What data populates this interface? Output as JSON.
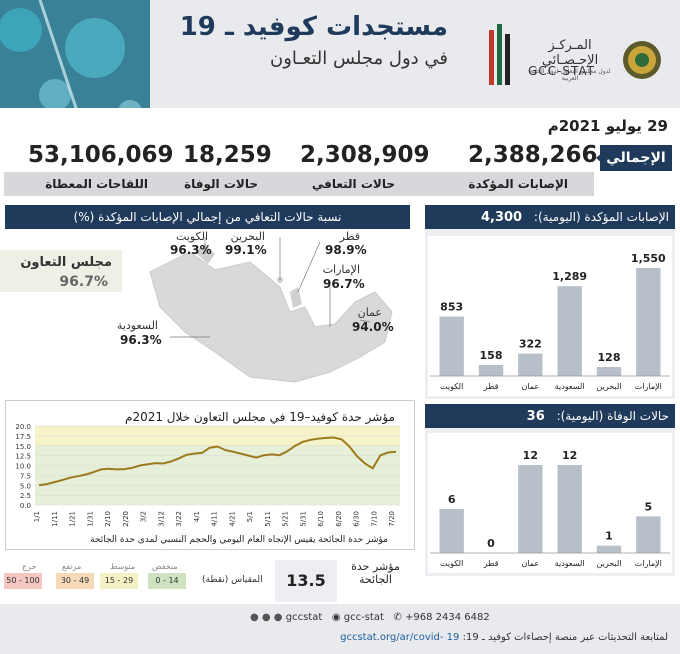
{
  "header": {
    "title": "مستجدات كوفيد ـ 19",
    "subtitle": "في دول مجلس التعـاون",
    "logo_ar": "المـركـز الإحـصـائي",
    "logo_ar_sub": "لدول مجلس التعاون لدول الخليج العربية",
    "logo_en": "GCC-STAT"
  },
  "date": "29 يوليو 2021م",
  "totals": {
    "label": "الإجمالي",
    "confirmed": {
      "value": "2,388,266",
      "label": "الإصابات المؤكدة"
    },
    "recovered": {
      "value": "2,308,909",
      "label": "حالات التعافي"
    },
    "deaths": {
      "value": "18,259",
      "label": "حالات الوفاة"
    },
    "vaccines": {
      "value": "53,106,069",
      "label": "اللقاحات المعطاة"
    }
  },
  "recovery_panel": {
    "title": "نسبة حالات التعافي من إجمالي الإصابات المؤكدة (%)",
    "gcc_name": "مجلس التعاون",
    "gcc_value": "96.7%",
    "countries": [
      {
        "name": "الكويت",
        "value": "96.3%"
      },
      {
        "name": "البحرين",
        "value": "99.1%"
      },
      {
        "name": "قطر",
        "value": "98.9%"
      },
      {
        "name": "الإمارات",
        "value": "96.7%"
      },
      {
        "name": "عمان",
        "value": "94.0%"
      },
      {
        "name": "السعودية",
        "value": "96.3%"
      }
    ]
  },
  "index": {
    "title": "مؤشر حدة كوفيد–19 في مجلس التعاون خلال 2021م",
    "note": "مؤشر حدة الجائحة يقيس الإتجاه العام اليومي والحجم النسبي لمدى حدة الجائحة",
    "value": "13.5",
    "caption": "مؤشر حدة الجائحة",
    "scale_label": "المقياس (نقطة)",
    "scale": [
      {
        "name": "منخفض",
        "range": "0 - 14",
        "color": "#cfe3c0"
      },
      {
        "name": "متوسط",
        "range": "15 - 29",
        "color": "#f4f1c4"
      },
      {
        "name": "مرتفع",
        "range": "30 - 49",
        "color": "#f5d9b8"
      },
      {
        "name": "حرج",
        "range": "50 - 100",
        "color": "#f4c7c3"
      }
    ]
  },
  "cases_panel": {
    "title": "الإصابات المؤكدة (اليومية):",
    "total": "4,300"
  },
  "deaths_panel": {
    "title": "حالات الوفاة (اليومية):",
    "total": "36"
  },
  "footer": {
    "phone": "+968 2434 6482",
    "handle1": "gcc-stat",
    "handle2": "gccstat",
    "note": "لمتابعة التحديثات عبر منصة إحصاءات كوفيد ـ 19:",
    "url": "gccstat.org/ar/covid- 19"
  },
  "chart_data": [
    {
      "type": "bar",
      "title": "الإصابات المؤكدة (اليومية):",
      "categories": [
        "الكويت",
        "قطر",
        "عمان",
        "السعودية",
        "البحرين",
        "الإمارات"
      ],
      "values": [
        853,
        158,
        322,
        1289,
        128,
        1550
      ],
      "color": "#b7bfc9"
    },
    {
      "type": "bar",
      "title": "حالات الوفاة (اليومية):",
      "categories": [
        "الكويت",
        "قطر",
        "عمان",
        "السعودية",
        "البحرين",
        "الإمارات"
      ],
      "values": [
        6,
        0,
        12,
        12,
        1,
        5
      ],
      "color": "#b7bfc9"
    },
    {
      "type": "line",
      "title": "مؤشر حدة كوفيد–19 في مجلس التعاون خلال 2021م",
      "x_ticks": [
        "1/1",
        "1/11",
        "1/21",
        "1/31",
        "2/10",
        "2/20",
        "3/2",
        "3/12",
        "3/22",
        "4/1",
        "4/11",
        "4/21",
        "5/1",
        "5/11",
        "5/21",
        "5/31",
        "6/10",
        "6/20",
        "6/30",
        "7/10",
        "7/20"
      ],
      "ylim": [
        0,
        20
      ],
      "y_ticks": [
        "0.0",
        "2.5",
        "5.0",
        "7.5",
        "10.0",
        "12.5",
        "15.0",
        "17.5",
        "20.0"
      ],
      "band_low": [
        0,
        15
      ],
      "band_mid": [
        15,
        20
      ],
      "line_color": "#9c7a1e",
      "values": [
        5.0,
        5.3,
        5.8,
        6.3,
        6.9,
        7.3,
        7.7,
        8.3,
        9.0,
        9.2,
        9.0,
        9.1,
        9.4,
        10.0,
        10.3,
        10.6,
        10.5,
        11.0,
        11.8,
        12.7,
        13.0,
        13.2,
        14.5,
        14.8,
        13.9,
        13.5,
        13.0,
        12.5,
        12.0,
        12.6,
        12.8,
        12.6,
        13.6,
        15.0,
        16.0,
        16.5,
        16.8,
        17.0,
        17.1,
        16.6,
        14.8,
        12.3,
        10.5,
        9.3,
        12.6,
        13.3,
        13.5
      ]
    }
  ]
}
